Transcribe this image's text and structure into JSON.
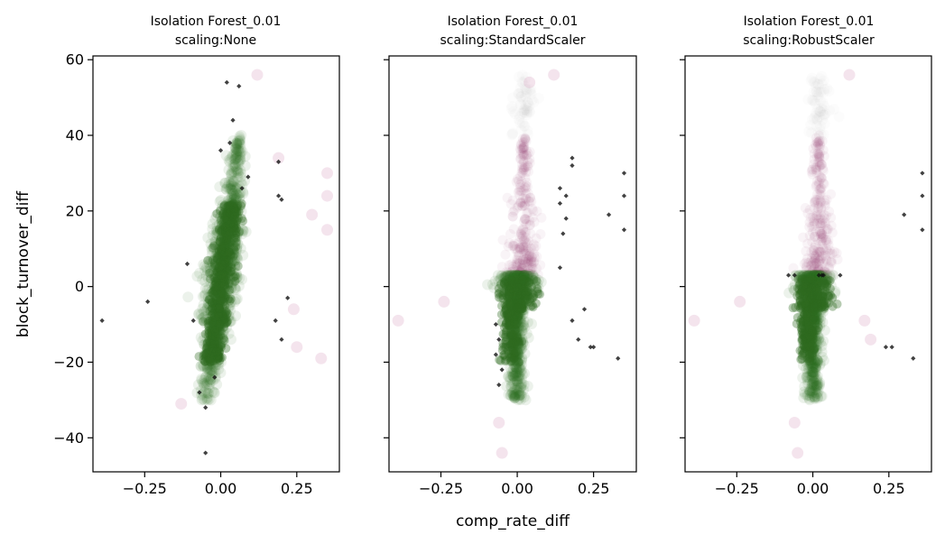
{
  "chart_data": {
    "type": "scatter",
    "shared_xlabel": "comp_rate_diff",
    "shared_ylabel": "block_turnover_diff",
    "xlim": [
      -0.42,
      0.39
    ],
    "ylim": [
      -49,
      61
    ],
    "xticks": [
      -0.25,
      0.0,
      0.25
    ],
    "xtick_labels": [
      "−0.25",
      "0.00",
      "0.25"
    ],
    "yticks": [
      -40,
      -20,
      0,
      20,
      40,
      60
    ],
    "ytick_labels": [
      "−40",
      "−20",
      "0",
      "20",
      "40",
      "60"
    ],
    "colors": {
      "inlier": "#2e6b1f",
      "outlier_marker": "#111111",
      "density_pink": "#8a1f6b"
    },
    "panels": [
      {
        "title_line1": "Isolation Forest_0.01",
        "title_line2": "scaling:None",
        "main_cloud": {
          "x_center": 0.0,
          "x_spread": 0.05,
          "y_min": -30,
          "y_max": 40,
          "slope": 0.0015
        },
        "flagged_points": [
          [
            -0.39,
            -9
          ],
          [
            -0.24,
            -4
          ],
          [
            -0.05,
            -44
          ],
          [
            0.02,
            54
          ],
          [
            0.06,
            53
          ],
          [
            0.19,
            33
          ],
          [
            0.19,
            24
          ],
          [
            0.2,
            23
          ],
          [
            0.22,
            -3
          ],
          [
            0.18,
            -9
          ],
          [
            0.2,
            -14
          ],
          [
            -0.05,
            -32
          ],
          [
            0.04,
            44
          ],
          [
            0.03,
            38
          ],
          [
            0.0,
            36
          ],
          [
            -0.07,
            -28
          ],
          [
            -0.02,
            -24
          ],
          [
            0.09,
            29
          ],
          [
            0.07,
            26
          ],
          [
            -0.09,
            -9
          ],
          [
            -0.11,
            6
          ]
        ],
        "faint_pink_points": [
          [
            0.12,
            56
          ],
          [
            0.19,
            34
          ],
          [
            0.35,
            30
          ],
          [
            0.35,
            24
          ],
          [
            0.3,
            19
          ],
          [
            0.35,
            15
          ],
          [
            0.33,
            -19
          ],
          [
            0.24,
            -6
          ],
          [
            0.25,
            -16
          ],
          [
            -0.13,
            -31
          ]
        ]
      },
      {
        "title_line1": "Isolation Forest_0.01",
        "title_line2": "scaling:StandardScaler",
        "main_cloud": {
          "x_center": 0.0,
          "x_spread": 0.04,
          "y_min": -30,
          "y_max": 3,
          "slope": 0.0
        },
        "pink_column": {
          "x_center": 0.02,
          "y_min": 3,
          "y_max": 40
        },
        "flagged_points": [
          [
            0.18,
            34
          ],
          [
            0.18,
            32
          ],
          [
            0.35,
            30
          ],
          [
            0.35,
            24
          ],
          [
            0.14,
            26
          ],
          [
            0.16,
            24
          ],
          [
            0.14,
            22
          ],
          [
            0.16,
            18
          ],
          [
            0.3,
            19
          ],
          [
            0.35,
            15
          ],
          [
            0.15,
            14
          ],
          [
            0.14,
            5
          ],
          [
            0.18,
            -9
          ],
          [
            0.2,
            -14
          ],
          [
            0.22,
            -6
          ],
          [
            0.24,
            -16
          ],
          [
            0.25,
            -16
          ],
          [
            0.33,
            -19
          ],
          [
            -0.07,
            -10
          ],
          [
            -0.06,
            -14
          ],
          [
            -0.07,
            -18
          ],
          [
            -0.05,
            -22
          ],
          [
            -0.06,
            -26
          ]
        ],
        "faint_pink_points": [
          [
            -0.39,
            -9
          ],
          [
            -0.24,
            -4
          ],
          [
            -0.05,
            -44
          ],
          [
            -0.06,
            -36
          ],
          [
            0.12,
            56
          ],
          [
            0.04,
            54
          ]
        ]
      },
      {
        "title_line1": "Isolation Forest_0.01",
        "title_line2": "scaling:RobustScaler",
        "main_cloud": {
          "x_center": 0.0,
          "x_spread": 0.04,
          "y_min": -30,
          "y_max": 3,
          "slope": 0.0
        },
        "pink_column": {
          "x_center": 0.02,
          "y_min": 3,
          "y_max": 40
        },
        "flagged_points": [
          [
            -0.08,
            3
          ],
          [
            -0.06,
            3
          ],
          [
            0.02,
            3
          ],
          [
            0.03,
            3
          ],
          [
            0.035,
            3
          ],
          [
            0.09,
            3
          ],
          [
            0.36,
            30
          ],
          [
            0.36,
            24
          ],
          [
            0.3,
            19
          ],
          [
            0.36,
            15
          ],
          [
            0.24,
            -16
          ],
          [
            0.26,
            -16
          ],
          [
            0.33,
            -19
          ]
        ],
        "faint_pink_points": [
          [
            -0.39,
            -9
          ],
          [
            -0.24,
            -4
          ],
          [
            -0.05,
            -44
          ],
          [
            -0.06,
            -36
          ],
          [
            0.12,
            56
          ],
          [
            0.19,
            -14
          ],
          [
            0.17,
            -9
          ]
        ]
      }
    ]
  }
}
